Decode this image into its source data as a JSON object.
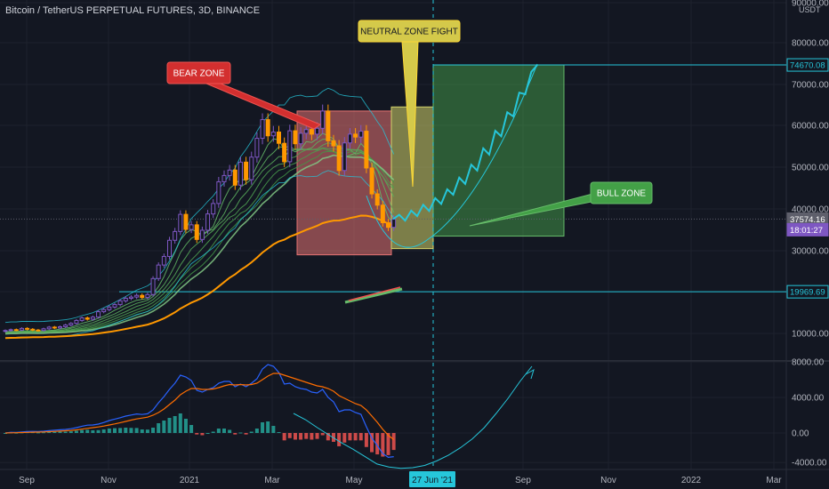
{
  "header": {
    "title": "Bitcoin / TetherUS PERPETUAL FUTURES, 3D, BINANCE",
    "currency": "USDT"
  },
  "colors": {
    "background": "#131722",
    "up_candle": "#7e57c2",
    "down_candle": "#ff9800",
    "bear_zone": "#e57373",
    "neutral_zone": "#d4d46a",
    "bull_zone": "#4caf50",
    "hline": "#26c6da",
    "ma": "#ff9800",
    "macd": "#2962ff",
    "signal": "#ff6d00",
    "hist_pos": "#26a69a",
    "hist_neg": "#ef5350"
  },
  "chart_data": [
    {
      "type": "candlestick",
      "title": "Bitcoin / TetherUS PERPETUAL FUTURES, 3D, BINANCE",
      "x_ticks": [
        "Sep",
        "Nov",
        "2021",
        "Mar",
        "May",
        "Sep",
        "Nov",
        "2022",
        "Mar"
      ],
      "cursor_label": "27 Jun '21",
      "y_ticks": [
        10000,
        20000,
        30000,
        40000,
        50000,
        60000,
        70000,
        80000,
        90000
      ],
      "y_tick_labels": [
        "10000.00",
        "20000.00",
        "30000.00",
        "40000.00",
        "50000.00",
        "60000.00",
        "70000.00",
        "80000.00",
        "90000.00"
      ],
      "ylim": [
        5000,
        92000
      ],
      "price_tags": [
        {
          "label": "74670.08",
          "value": 74670.08,
          "style": "hline"
        },
        {
          "label": "37574.16",
          "value": 37574.16,
          "style": "current"
        },
        {
          "label": "18:01:27",
          "value": 35700,
          "style": "countdown"
        },
        {
          "label": "19969.69",
          "value": 19969.69,
          "style": "hline"
        }
      ],
      "candles_close": [
        10700,
        10900,
        10800,
        11200,
        11000,
        10800,
        10700,
        11100,
        11500,
        11300,
        11600,
        12000,
        12400,
        13100,
        13700,
        13400,
        13900,
        15200,
        15700,
        16300,
        16900,
        17800,
        18400,
        18700,
        19100,
        18600,
        19300,
        23200,
        26500,
        28600,
        32500,
        34600,
        38700,
        35100,
        36200,
        32700,
        34900,
        38800,
        41300,
        46500,
        48000,
        49300,
        45700,
        51200,
        47000,
        52400,
        56900,
        61400,
        57500,
        58400,
        55700,
        51300,
        58700,
        55600,
        58100,
        59000,
        57900,
        59300,
        63500,
        56300,
        55100,
        49200,
        55800,
        57900,
        57200,
        58600,
        49800,
        43600,
        40900,
        36700,
        35600,
        37574
      ],
      "ma_line": [
        10350,
        10400,
        10420,
        10480,
        10520,
        10560,
        10580,
        10620,
        10680,
        10720,
        10780,
        10850,
        10950,
        11060,
        11190,
        11320,
        11460,
        11640,
        11840,
        12060,
        12300,
        12570,
        12870,
        13170,
        13480,
        13760,
        14070,
        14560,
        15160,
        15810,
        16640,
        17500,
        18540,
        19350,
        20190,
        20830,
        21560,
        22480,
        23480,
        24720,
        25960,
        27190,
        28160,
        29410,
        30410,
        31600,
        32930,
        34370,
        35490,
        36630,
        37480,
        37960,
        38790,
        39390,
        40030,
        40680,
        41230,
        41830,
        42560,
        42950,
        43280,
        43290,
        43600,
        43980,
        44290,
        44650,
        44640,
        44300,
        43840,
        43150,
        42440,
        41800
      ],
      "projection": [
        37574,
        38600,
        37200,
        39600,
        38300,
        41000,
        39500,
        42600,
        41200,
        44700,
        43400,
        47500,
        46000,
        50600,
        49200,
        54500,
        53000,
        58700,
        57400,
        63200,
        62200,
        68000,
        67600,
        73000,
        74670
      ],
      "zones": [
        {
          "label": "BEAR ZONE",
          "x_from": 46,
          "x_to": 60,
          "y_from": 29000,
          "y_to": 63500
        },
        {
          "label": "NEUTRAL ZONE FIGHT",
          "x_from": 60,
          "x_to": 66,
          "y_from": 30500,
          "y_to": 64500
        },
        {
          "label": "BULL ZONE",
          "x_from": 67,
          "x_to": 90,
          "y_from": 33500,
          "y_to": 74670
        }
      ]
    },
    {
      "type": "line",
      "title": "",
      "y_ticks": [
        -4000,
        0,
        4000,
        8000
      ],
      "y_tick_labels": [
        "-4000.00",
        "0.00",
        "4000.00",
        "8000.00"
      ],
      "ylim": [
        -5000,
        9000
      ],
      "series": [
        {
          "values": [
            0,
            80,
            60,
            120,
            160,
            180,
            160,
            200,
            260,
            320,
            360,
            400,
            480,
            600,
            760,
            880,
            900,
            1000,
            1180,
            1400,
            1560,
            1720,
            1900,
            2020,
            2140,
            2080,
            2160,
            2600,
            3400,
            4100,
            4900,
            5600,
            6500,
            6300,
            5900,
            4800,
            4600,
            4900,
            5100,
            5600,
            5800,
            5800,
            5200,
            5500,
            5200,
            5600,
            6100,
            7200,
            7700,
            7500,
            6800,
            5500,
            5600,
            5200,
            5000,
            4900,
            4600,
            4500,
            4900,
            4000,
            3500,
            2400,
            2600,
            2600,
            2300,
            2100,
            700,
            -700,
            -1700,
            -2800,
            -3300,
            -3200
          ]
        },
        {
          "values": [
            0,
            20,
            30,
            50,
            70,
            90,
            100,
            120,
            150,
            180,
            210,
            250,
            290,
            350,
            430,
            520,
            600,
            680,
            780,
            900,
            1020,
            1160,
            1300,
            1450,
            1580,
            1680,
            1780,
            2000,
            2300,
            2700,
            3200,
            3700,
            4300,
            4700,
            5000,
            5000,
            4900,
            4900,
            4950,
            5100,
            5300,
            5450,
            5400,
            5450,
            5400,
            5450,
            5600,
            6000,
            6400,
            6700,
            6700,
            6500,
            6300,
            6100,
            5900,
            5700,
            5500,
            5300,
            5200,
            5000,
            4700,
            4200,
            3900,
            3600,
            3300,
            3100,
            2600,
            1900,
            1200,
            400,
            -300,
            -900
          ]
        }
      ],
      "hist": [
        0,
        60,
        30,
        70,
        90,
        90,
        60,
        80,
        110,
        140,
        150,
        150,
        190,
        250,
        330,
        360,
        300,
        320,
        400,
        500,
        540,
        560,
        600,
        570,
        560,
        400,
        380,
        600,
        1100,
        1400,
        1700,
        1900,
        2200,
        1600,
        900,
        -200,
        -300,
        0,
        150,
        500,
        500,
        350,
        -200,
        50,
        -200,
        150,
        500,
        1200,
        1300,
        800,
        100,
        -1000,
        -700,
        -900,
        -900,
        -800,
        -900,
        -800,
        -300,
        -1000,
        -1200,
        -1800,
        -1300,
        -1000,
        -1000,
        -1000,
        -1900,
        -2600,
        -2900,
        -3200,
        -3000,
        -2300
      ],
      "curve": [
        2200,
        1500,
        600,
        -300,
        -1300,
        -2200,
        -3200,
        -4200,
        -4600,
        -4800,
        -4700,
        -4400,
        -3800,
        -3000,
        -2000,
        -800,
        600,
        2200,
        3900,
        5800,
        7500
      ]
    }
  ]
}
